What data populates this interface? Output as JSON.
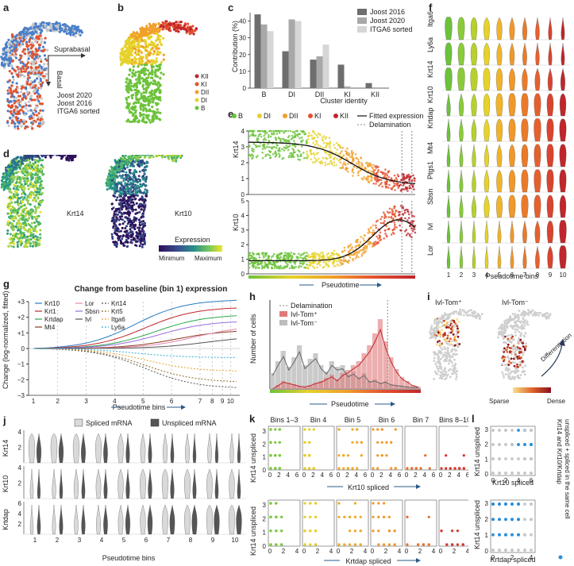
{
  "panels": {
    "a": {
      "label": "a",
      "arrow_right": "Suprabasal",
      "arrow_down": "Basal",
      "legend": [
        "Joost 2020",
        "Joost 2016",
        "ITGA6 sorted"
      ],
      "colors": {
        "Joost 2020": "#4a7fc9",
        "Joost 2016": "#e0532f",
        "ITGA6 sorted": "#c8c8c8"
      }
    },
    "b": {
      "label": "b",
      "legend": [
        "KII",
        "KI",
        "DII",
        "DI",
        "B"
      ],
      "colors": {
        "KII": "#c0262c",
        "KI": "#e5522f",
        "DII": "#f0a02a",
        "DI": "#e6d22a",
        "B": "#6cc23a"
      }
    },
    "c": {
      "label": "c",
      "ylabel": "Contribution (%)",
      "xlabel": "Cluster identity",
      "legend": [
        "Joost 2016",
        "Joost 2020",
        "ITGA6 sorted"
      ]
    },
    "d": {
      "label": "d",
      "umap1": "Krt14",
      "umap2": "Krt10",
      "legend_title": "Expression",
      "min_label": "Minimum",
      "max_label": "Maximum"
    },
    "e": {
      "label": "e",
      "legend_clusters": [
        "B",
        "DI",
        "DII",
        "KI",
        "KII"
      ],
      "legend_fit": "Fitted expression",
      "legend_delam": "Delamination",
      "ylabel_top": "Krt14",
      "ylabel_bottom": "Krt10",
      "yticks_top": [
        "0",
        "1",
        "2",
        "3",
        "4"
      ],
      "yticks_bottom": [
        "0",
        "1",
        "2",
        "3",
        "4",
        "5"
      ],
      "xlabel": "Pseudotime"
    },
    "f": {
      "label": "f",
      "genes": [
        "Itga6",
        "Ly6a",
        "Krt14",
        "Krt10",
        "Krtdap",
        "Mt4",
        "Ptgs1",
        "Sbsn",
        "Ivl",
        "Lor"
      ],
      "bins": [
        "1",
        "2",
        "3",
        "4",
        "5",
        "6",
        "7",
        "8",
        "9",
        "10"
      ],
      "xlabel": "Pseudotime bins"
    },
    "g": {
      "label": "g",
      "title": "Change from baseline (bin 1) expression",
      "ylabel": "Change (log-normalized, fitted)",
      "yticks": [
        "+3",
        "+2",
        "+1",
        "0",
        "−1",
        "−2",
        "−3"
      ],
      "xticks": [
        "1",
        "2",
        "3",
        "4",
        "5",
        "6",
        "7",
        "8",
        "9",
        "10"
      ],
      "xlabel": "Pseudotime bins",
      "legend": [
        "Krt10",
        "Krt1",
        "Krtdap",
        "Mt4",
        "Lor",
        "Sbsn",
        "Ivl",
        "Krt14",
        "Krt5",
        "Itga6",
        "Ly6a"
      ]
    },
    "h": {
      "label": "h",
      "ylabel": "Number of cells",
      "xlabel": "Pseudotime",
      "legend": [
        "Delamination",
        "Ivl-Tom⁺",
        "Ivl-Tom⁻"
      ]
    },
    "i": {
      "label": "i",
      "title_pos": "Ivl-Tom⁺",
      "title_neg": "Ivl-Tom⁻",
      "arrow_label": "Differentiation",
      "sparse": "Sparse",
      "dense": "Dense"
    },
    "j": {
      "label": "j",
      "legend": [
        "Spliced mRNA",
        "Unspliced mRNA"
      ],
      "genes": [
        "Krt14",
        "Krt10",
        "Krtdap"
      ],
      "bins": [
        "1",
        "2",
        "3",
        "4",
        "5",
        "6",
        "7",
        "8",
        "9",
        "10"
      ],
      "xlabel": "Pseudotime bins"
    },
    "k": {
      "label": "k",
      "columns": [
        "Bins 1–3",
        "Bin 4",
        "Bin 5",
        "Bin 6",
        "Bin 7",
        "Bins 8–10"
      ],
      "ylabel": "Krt14 unspliced",
      "xlabel_top": "Krt10 spliced",
      "xlabel_bottom": "Krtdap spliced",
      "xticks_top": [
        "0",
        "2",
        "4",
        "6"
      ],
      "xticks_bottom": [
        "0",
        "2",
        "4"
      ],
      "yticks": [
        "0",
        "1",
        "2",
        "3"
      ]
    },
    "l": {
      "label": "l",
      "ylabel": "Krt14 unspliced",
      "xlabel_top": "Krt10 spliced",
      "xlabel_bottom": "Krtdap spliced",
      "xticks_top": [
        "0",
        "2",
        "4",
        "6"
      ],
      "xticks_bottom": [
        "0",
        "2",
        "4"
      ],
      "yticks": [
        "0",
        "1",
        "2",
        "3"
      ],
      "side_label_1": "Krt14 and Krt10/Krtdap",
      "side_label_2": "unspliced + spliced in the same cell"
    }
  },
  "chart_data": [
    {
      "type": "bar",
      "panel": "c",
      "categories": [
        "B",
        "DI",
        "DII",
        "KI",
        "KII"
      ],
      "series": [
        {
          "name": "Joost 2016",
          "values": [
            44,
            22,
            17,
            14,
            3
          ],
          "color": "#6e6e6e"
        },
        {
          "name": "Joost 2020",
          "values": [
            38,
            41,
            19,
            1,
            0
          ],
          "color": "#a8a8a8"
        },
        {
          "name": "ITGA6 sorted",
          "values": [
            34,
            40,
            26,
            0,
            0
          ],
          "color": "#d6d6d6"
        }
      ],
      "xlabel": "Cluster identity",
      "ylabel": "Contribution (%)",
      "ylim": [
        0,
        45
      ],
      "yticks": [
        0,
        10,
        20,
        30,
        40
      ]
    }
  ]
}
